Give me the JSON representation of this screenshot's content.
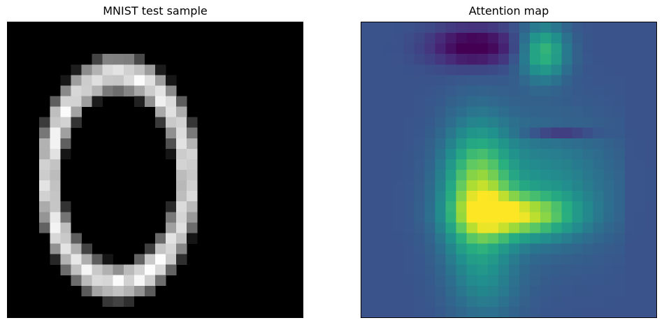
{
  "panels": {
    "left": {
      "title": "MNIST test sample",
      "grid_size": 28,
      "colormap": "gray"
    },
    "right": {
      "title": "Attention map",
      "grid_size": 28,
      "colormap": "viridis"
    }
  },
  "colors": {
    "background": "#ffffff",
    "frame": "#000000"
  }
}
